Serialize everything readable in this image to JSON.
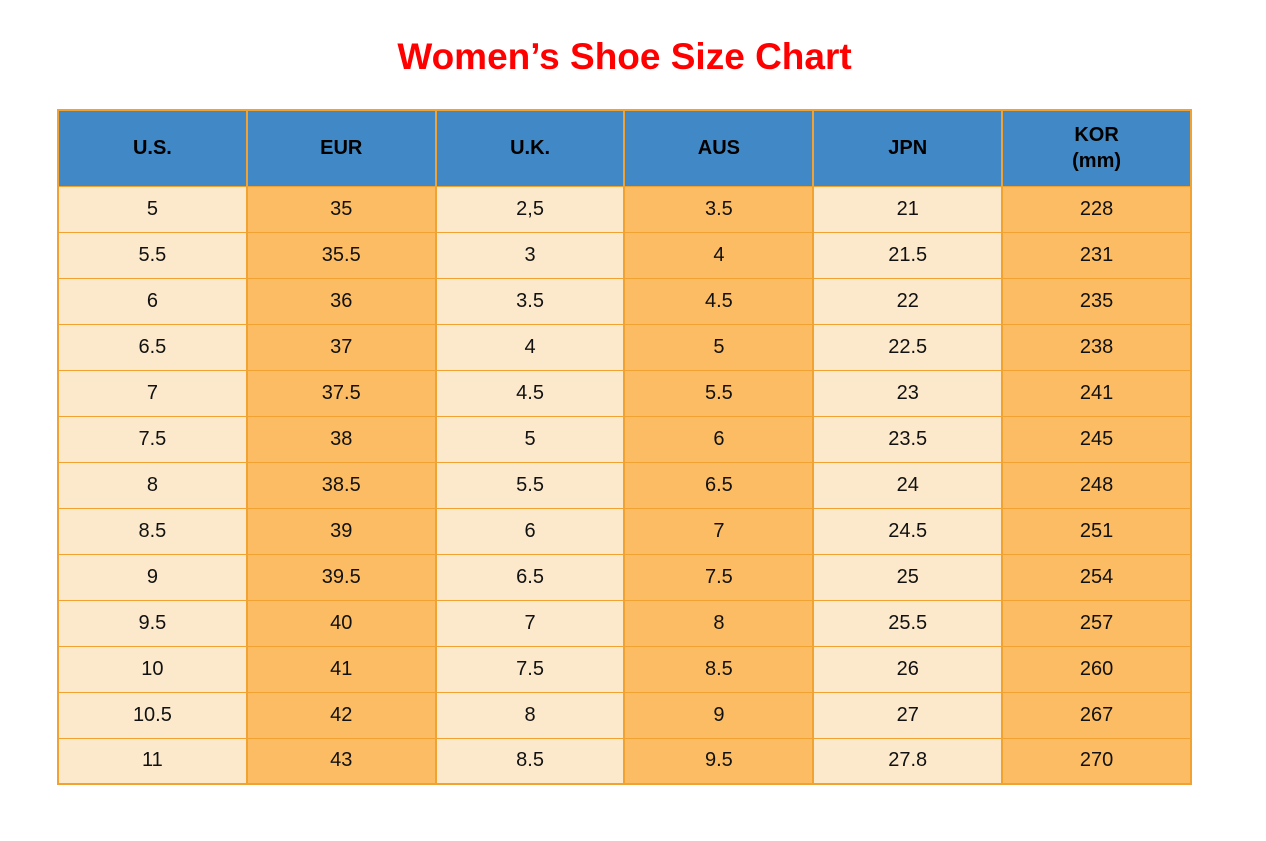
{
  "page": {
    "title": "Women’s Shoe Size Chart",
    "title_color": "#FF0000",
    "background": "#FFFFFF"
  },
  "table": {
    "header_bg": "#4189C6",
    "col_light_bg": "#FCE9CC",
    "col_orange_bg": "#FBBC63",
    "border_color": "#F2A230",
    "headers": [
      {
        "label": "U.S."
      },
      {
        "label": "EUR"
      },
      {
        "label": "U.K."
      },
      {
        "label": "AUS"
      },
      {
        "label": "JPN"
      },
      {
        "label": "KOR",
        "sublabel": "(mm)"
      }
    ]
  },
  "chart_data": {
    "type": "table",
    "title": "Women’s Shoe Size Chart",
    "columns": [
      "U.S.",
      "EUR",
      "U.K.",
      "AUS",
      "JPN",
      "KOR (mm)"
    ],
    "rows": [
      [
        "5",
        "35",
        "2,5",
        "3.5",
        "21",
        "228"
      ],
      [
        "5.5",
        "35.5",
        "3",
        "4",
        "21.5",
        "231"
      ],
      [
        "6",
        "36",
        "3.5",
        "4.5",
        "22",
        "235"
      ],
      [
        "6.5",
        "37",
        "4",
        "5",
        "22.5",
        "238"
      ],
      [
        "7",
        "37.5",
        "4.5",
        "5.5",
        "23",
        "241"
      ],
      [
        "7.5",
        "38",
        "5",
        "6",
        "23.5",
        "245"
      ],
      [
        "8",
        "38.5",
        "5.5",
        "6.5",
        "24",
        "248"
      ],
      [
        "8.5",
        "39",
        "6",
        "7",
        "24.5",
        "251"
      ],
      [
        "9",
        "39.5",
        "6.5",
        "7.5",
        "25",
        "254"
      ],
      [
        "9.5",
        "40",
        "7",
        "8",
        "25.5",
        "257"
      ],
      [
        "10",
        "41",
        "7.5",
        "8.5",
        "26",
        "260"
      ],
      [
        "10.5",
        "42",
        "8",
        "9",
        "27",
        "267"
      ],
      [
        "11",
        "43",
        "8.5",
        "9.5",
        "27.8",
        "270"
      ]
    ]
  }
}
